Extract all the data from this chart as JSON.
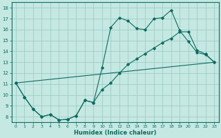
{
  "title": "",
  "xlabel": "Humidex (Indice chaleur)",
  "background_color": "#c5e8e2",
  "grid_color": "#9eccc5",
  "line_color": "#0d6b60",
  "xlim": [
    -0.5,
    23.5
  ],
  "ylim": [
    7.5,
    18.5
  ],
  "xticks": [
    0,
    1,
    2,
    3,
    4,
    5,
    6,
    7,
    8,
    9,
    10,
    11,
    12,
    13,
    14,
    15,
    16,
    17,
    18,
    19,
    20,
    21,
    22,
    23
  ],
  "yticks": [
    8,
    9,
    10,
    11,
    12,
    13,
    14,
    15,
    16,
    17,
    18
  ],
  "line1_x": [
    0,
    1,
    2,
    3,
    4,
    5,
    6,
    7,
    8,
    9,
    10,
    11,
    12,
    13,
    14,
    15,
    16,
    17,
    18,
    19,
    20,
    21,
    22,
    23
  ],
  "line1_y": [
    11.1,
    9.8,
    8.7,
    8.0,
    8.2,
    7.7,
    7.75,
    8.1,
    9.5,
    9.3,
    12.5,
    16.2,
    17.1,
    16.8,
    16.1,
    16.0,
    17.0,
    17.1,
    17.8,
    15.9,
    14.9,
    13.9,
    13.7,
    13.0
  ],
  "line2_x": [
    0,
    1,
    2,
    3,
    4,
    5,
    6,
    7,
    8,
    9,
    10,
    11,
    12,
    13,
    14,
    15,
    16,
    17,
    18,
    19,
    20,
    21,
    22,
    23
  ],
  "line2_y": [
    11.1,
    9.8,
    8.7,
    8.0,
    8.2,
    7.7,
    7.75,
    8.1,
    9.5,
    9.3,
    10.5,
    11.1,
    12.0,
    12.8,
    13.3,
    13.8,
    14.3,
    14.8,
    15.2,
    15.8,
    15.8,
    14.1,
    13.75,
    13.0
  ],
  "line3_x": [
    0,
    23
  ],
  "line3_y": [
    11.1,
    13.0
  ]
}
